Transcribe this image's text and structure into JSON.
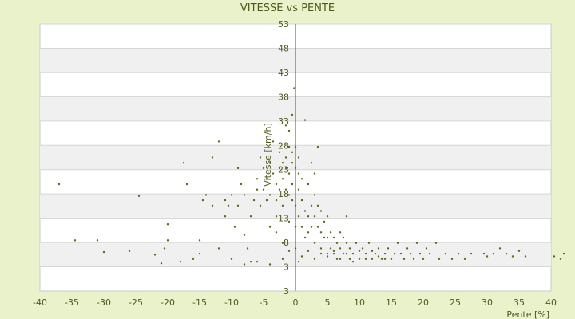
{
  "chart_data": {
    "type": "scatter",
    "title": "VITESSE vs PENTE",
    "xlabel": "Pente [%]",
    "ylabel": "Vitesse [km/h]",
    "xlim": [
      -40,
      40
    ],
    "ylim": [
      3,
      53
    ],
    "x_ticks": [
      "-40",
      "-35",
      "-30",
      "-25",
      "-20",
      "-15",
      "-10",
      "-5",
      "0",
      "5",
      "10",
      "15",
      "20",
      "25",
      "30",
      "35",
      "40"
    ],
    "y_ticks": [
      "53",
      "48",
      "43",
      "38",
      "33",
      "28",
      "23",
      "18",
      "13",
      "8",
      "3",
      "3"
    ],
    "grid": true,
    "marker_color": "#5a6b1e",
    "band_color": "#f0f0f0",
    "series": [
      {
        "points": [
          [
            -37,
            23
          ],
          [
            -34.5,
            12.5
          ],
          [
            -31,
            12.5
          ],
          [
            -30,
            10.3
          ],
          [
            -26,
            10.5
          ],
          [
            -24.5,
            20.8
          ],
          [
            -22,
            9.8
          ],
          [
            -21,
            8.2
          ],
          [
            -20.5,
            11
          ],
          [
            -20,
            12.5
          ],
          [
            -20,
            15.5
          ],
          [
            -17.5,
            27
          ],
          [
            -17,
            23
          ],
          [
            -15,
            12.5
          ],
          [
            -14.5,
            20
          ],
          [
            -14,
            21
          ],
          [
            -13,
            19
          ],
          [
            -13,
            28
          ],
          [
            -12,
            31
          ],
          [
            -11,
            20
          ],
          [
            -11,
            17
          ],
          [
            -10.5,
            19
          ],
          [
            -10,
            21
          ],
          [
            -9.5,
            15
          ],
          [
            -9,
            19
          ],
          [
            -9,
            26
          ],
          [
            -8.5,
            23
          ],
          [
            -8,
            21
          ],
          [
            -8,
            13.5
          ],
          [
            -7.5,
            11
          ],
          [
            -7,
            8.5
          ],
          [
            -7,
            17
          ],
          [
            -6.5,
            20
          ],
          [
            -6,
            22
          ],
          [
            -6,
            24
          ],
          [
            -5.5,
            19
          ],
          [
            -5.5,
            28
          ],
          [
            -5,
            26
          ],
          [
            -5,
            22
          ],
          [
            -4.5,
            20
          ],
          [
            -4.5,
            24
          ],
          [
            -4,
            27
          ],
          [
            -4,
            21
          ],
          [
            -4,
            15
          ],
          [
            -3.5,
            31
          ],
          [
            -3.5,
            25
          ],
          [
            -3,
            20
          ],
          [
            -3,
            23
          ],
          [
            -3,
            17
          ],
          [
            -3,
            14
          ],
          [
            -2.5,
            29
          ],
          [
            -2.5,
            26
          ],
          [
            -2.5,
            22
          ],
          [
            -2,
            27
          ],
          [
            -2,
            24
          ],
          [
            -2,
            19
          ],
          [
            -2,
            12
          ],
          [
            -1.5,
            34
          ],
          [
            -1.5,
            28
          ],
          [
            -1.5,
            26
          ],
          [
            -1.5,
            22
          ],
          [
            -1,
            33
          ],
          [
            -1,
            30
          ],
          [
            -1,
            25
          ],
          [
            -1,
            21
          ],
          [
            -1,
            16
          ],
          [
            -0.5,
            36
          ],
          [
            -0.5,
            29
          ],
          [
            -0.5,
            27
          ],
          [
            -0.5,
            23
          ],
          [
            -0.5,
            20
          ],
          [
            -0.2,
            41
          ],
          [
            0,
            30
          ],
          [
            0,
            26
          ],
          [
            0,
            19
          ],
          [
            0,
            15
          ],
          [
            0.5,
            28
          ],
          [
            0.5,
            25
          ],
          [
            0.5,
            22
          ],
          [
            0.5,
            17
          ],
          [
            1,
            24
          ],
          [
            1,
            20
          ],
          [
            1,
            15
          ],
          [
            1.5,
            35
          ],
          [
            1.5,
            18
          ],
          [
            1.5,
            13
          ],
          [
            2,
            23
          ],
          [
            2,
            17
          ],
          [
            2,
            14
          ],
          [
            2.5,
            27
          ],
          [
            2.5,
            19
          ],
          [
            2.5,
            15
          ],
          [
            3,
            25
          ],
          [
            3,
            21
          ],
          [
            3,
            17
          ],
          [
            3,
            12
          ],
          [
            3.5,
            30
          ],
          [
            3.5,
            19
          ],
          [
            3.5,
            15
          ],
          [
            4,
            18
          ],
          [
            4,
            14
          ],
          [
            4,
            11
          ],
          [
            4.5,
            16
          ],
          [
            4.5,
            13
          ],
          [
            5,
            17
          ],
          [
            5,
            13
          ],
          [
            5,
            10
          ],
          [
            5.5,
            14
          ],
          [
            5.5,
            11
          ],
          [
            6,
            13
          ],
          [
            6,
            10
          ],
          [
            6.5,
            12
          ],
          [
            6.5,
            9
          ],
          [
            7,
            14
          ],
          [
            7,
            11
          ],
          [
            7.5,
            13
          ],
          [
            7.5,
            10
          ],
          [
            8,
            17
          ],
          [
            8,
            12
          ],
          [
            8.5,
            11
          ],
          [
            8.5,
            9
          ],
          [
            9,
            10
          ],
          [
            9.5,
            12
          ],
          [
            10,
            9
          ],
          [
            10.5,
            11
          ],
          [
            11,
            10
          ],
          [
            11.5,
            12
          ],
          [
            12,
            9
          ],
          [
            12.5,
            10
          ],
          [
            13,
            11
          ],
          [
            13.5,
            9
          ],
          [
            14,
            10
          ],
          [
            14.5,
            11
          ],
          [
            15,
            9
          ],
          [
            15.5,
            10
          ],
          [
            16,
            12
          ],
          [
            16.5,
            10
          ],
          [
            17,
            9
          ],
          [
            17.5,
            11
          ],
          [
            18,
            10
          ],
          [
            18.5,
            9
          ],
          [
            19,
            12
          ],
          [
            19.5,
            10
          ],
          [
            20,
            9
          ],
          [
            20.5,
            11
          ],
          [
            21,
            10
          ],
          [
            22,
            12
          ],
          [
            22.5,
            9
          ],
          [
            23.5,
            10
          ],
          [
            24.5,
            9
          ],
          [
            25.5,
            10
          ],
          [
            26.5,
            9
          ],
          [
            27.5,
            10
          ],
          [
            29.5,
            10
          ],
          [
            30,
            9.5
          ],
          [
            31,
            10
          ],
          [
            32,
            11
          ],
          [
            33,
            10
          ],
          [
            34,
            9.5
          ],
          [
            35,
            10.5
          ],
          [
            36,
            9.5
          ],
          [
            40.5,
            9.5
          ],
          [
            41.5,
            9
          ],
          [
            42,
            10
          ],
          [
            -16,
            9
          ],
          [
            -15,
            10
          ],
          [
            -18,
            8.5
          ],
          [
            -12,
            11
          ],
          [
            -10,
            9
          ],
          [
            -8,
            8
          ],
          [
            -6,
            8.5
          ],
          [
            -4,
            8
          ],
          [
            -2,
            9
          ],
          [
            -1,
            10.5
          ],
          [
            0,
            11
          ],
          [
            0.5,
            8.5
          ],
          [
            1,
            9.5
          ],
          [
            2,
            10.5
          ],
          [
            3,
            9
          ],
          [
            4,
            10
          ],
          [
            5,
            9.5
          ],
          [
            6,
            10.5
          ],
          [
            7,
            9
          ],
          [
            8,
            10
          ],
          [
            9,
            8.5
          ],
          [
            10,
            10.5
          ],
          [
            11,
            9
          ],
          [
            12,
            10.5
          ],
          [
            13,
            9.5
          ],
          [
            14,
            9
          ]
        ]
      }
    ]
  }
}
